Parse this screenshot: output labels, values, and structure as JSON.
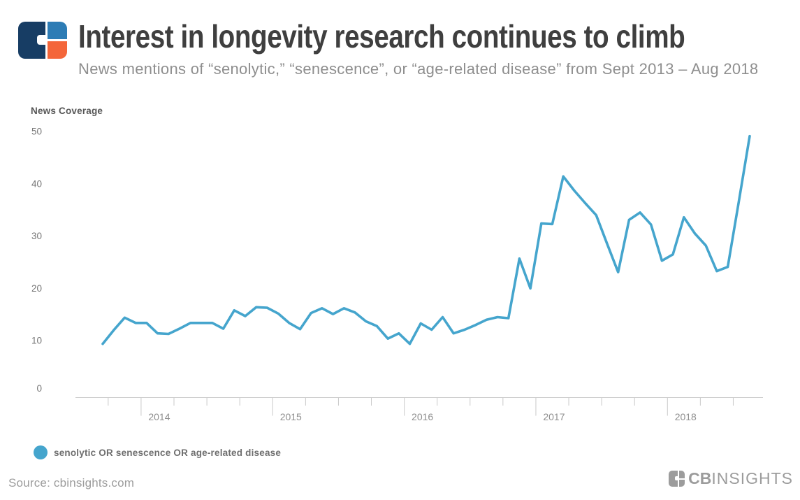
{
  "header": {
    "title": "Interest in longevity research continues to climb",
    "subtitle": "News mentions of “senolytic,” “senescence”, or “age-related disease” from Sept 2013 – Aug 2018"
  },
  "footer": {
    "source": "Source: cbinsights.com",
    "brand_bold": "CB",
    "brand_light": "INSIGHTS"
  },
  "colors": {
    "line_blue": "#45a5cd",
    "logo_navy": "#173d64",
    "logo_blue": "#2d7cb5",
    "logo_orange": "#f4663a",
    "footer_gray": "#9c9c9c"
  },
  "chart_data": {
    "type": "line",
    "ylabel": "News Coverage",
    "ylim": [
      0,
      50
    ],
    "y_ticks": [
      0,
      10,
      20,
      30,
      40,
      50
    ],
    "grid": false,
    "legend_position": "bottom-left",
    "x_year_labels": [
      "2014",
      "2015",
      "2016",
      "2017",
      "2018"
    ],
    "months": [
      "2013-09",
      "2013-10",
      "2013-11",
      "2013-12",
      "2014-01",
      "2014-02",
      "2014-03",
      "2014-04",
      "2014-05",
      "2014-06",
      "2014-07",
      "2014-08",
      "2014-09",
      "2014-10",
      "2014-11",
      "2014-12",
      "2015-01",
      "2015-02",
      "2015-03",
      "2015-04",
      "2015-05",
      "2015-06",
      "2015-07",
      "2015-08",
      "2015-09",
      "2015-10",
      "2015-11",
      "2015-12",
      "2016-01",
      "2016-02",
      "2016-03",
      "2016-04",
      "2016-05",
      "2016-06",
      "2016-07",
      "2016-08",
      "2016-09",
      "2016-10",
      "2016-11",
      "2016-12",
      "2017-01",
      "2017-02",
      "2017-03",
      "2017-04",
      "2017-05",
      "2017-06",
      "2017-07",
      "2017-08",
      "2017-09",
      "2017-10",
      "2017-11",
      "2017-12",
      "2018-01",
      "2018-02",
      "2018-03",
      "2018-04",
      "2018-05",
      "2018-06",
      "2018-07",
      "2018-08"
    ],
    "series": [
      {
        "name": "senolytic OR senescence OR age-related disease",
        "color": "#45a5cd",
        "values": [
          9.4,
          12.0,
          14.4,
          13.4,
          13.4,
          11.4,
          11.3,
          12.3,
          13.4,
          13.4,
          13.4,
          12.3,
          15.8,
          14.7,
          16.4,
          16.3,
          15.2,
          13.4,
          12.2,
          15.3,
          16.2,
          15.1,
          16.2,
          15.4,
          13.7,
          12.8,
          10.4,
          11.4,
          9.4,
          13.3,
          12.1,
          14.5,
          11.4,
          12.1,
          13.0,
          14.0,
          14.5,
          14.3,
          25.7,
          20.0,
          32.4,
          32.3,
          41.4,
          38.7,
          36.3,
          34.0,
          28.5,
          23.1,
          33.1,
          34.5,
          32.2,
          25.3,
          26.5,
          33.6,
          30.5,
          28.2,
          23.3,
          24.1,
          36.5,
          49.1
        ]
      }
    ]
  }
}
